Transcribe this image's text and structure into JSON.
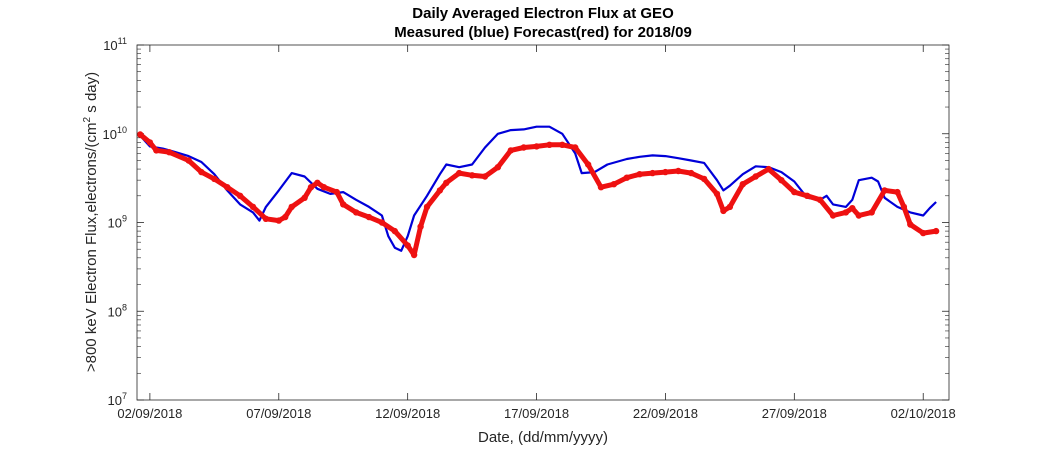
{
  "chart_data": {
    "type": "line",
    "title": "Daily Averaged Electron Flux at GEO",
    "subtitle": "Measured (blue) Forecast(red) for 2018/09",
    "xlabel": "Date, (dd/mm/yyyy)",
    "ylabel": ">800 keV Electron Flux,electrons/(cm",
    "ylabel_sup": "2",
    "ylabel_suffix": " s day)",
    "x_unit": "date",
    "xlim": [
      "2018-09-01T12:00",
      "2018-10-03T00:00"
    ],
    "ylim": [
      10000000,
      100000000000
    ],
    "y_scale": "log",
    "x_ticks": [
      {
        "value": "2018-09-02",
        "label": "02/09/2018"
      },
      {
        "value": "2018-09-07",
        "label": "07/09/2018"
      },
      {
        "value": "2018-09-12",
        "label": "12/09/2018"
      },
      {
        "value": "2018-09-17",
        "label": "17/09/2018"
      },
      {
        "value": "2018-09-22",
        "label": "22/09/2018"
      },
      {
        "value": "2018-09-27",
        "label": "27/09/2018"
      },
      {
        "value": "2018-10-02",
        "label": "02/10/2018"
      }
    ],
    "y_ticks": [
      {
        "value": 10000000,
        "base": "10",
        "exp": "7"
      },
      {
        "value": 100000000,
        "base": "10",
        "exp": "8"
      },
      {
        "value": 1000000000,
        "base": "10",
        "exp": "9"
      },
      {
        "value": 10000000000,
        "base": "10",
        "exp": "10"
      },
      {
        "value": 100000000000,
        "base": "10",
        "exp": "11"
      }
    ],
    "grid": false,
    "series": [
      {
        "color": "#0000d9",
        "style": "line",
        "points": [
          [
            "2018-09-01T15:00",
            9500000000
          ],
          [
            "2018-09-02T00:00",
            7200000000
          ],
          [
            "2018-09-02T12:00",
            6800000000
          ],
          [
            "2018-09-03T00:00",
            6200000000
          ],
          [
            "2018-09-03T12:00",
            5600000000
          ],
          [
            "2018-09-04T00:00",
            4800000000
          ],
          [
            "2018-09-04T12:00",
            3500000000
          ],
          [
            "2018-09-05T00:00",
            2300000000
          ],
          [
            "2018-09-05T12:00",
            1600000000
          ],
          [
            "2018-09-06T00:00",
            1300000000
          ],
          [
            "2018-09-06T06:00",
            1050000000
          ],
          [
            "2018-09-06T12:00",
            1500000000
          ],
          [
            "2018-09-07T00:00",
            2300000000
          ],
          [
            "2018-09-07T12:00",
            3600000000
          ],
          [
            "2018-09-08T00:00",
            3300000000
          ],
          [
            "2018-09-08T12:00",
            2400000000
          ],
          [
            "2018-09-09T00:00",
            2100000000
          ],
          [
            "2018-09-09T12:00",
            2200000000
          ],
          [
            "2018-09-10T00:00",
            1800000000
          ],
          [
            "2018-09-10T12:00",
            1500000000
          ],
          [
            "2018-09-11T00:00",
            1200000000
          ],
          [
            "2018-09-11T06:00",
            700000000
          ],
          [
            "2018-09-11T12:00",
            520000000
          ],
          [
            "2018-09-11T18:00",
            480000000
          ],
          [
            "2018-09-12T00:00",
            700000000
          ],
          [
            "2018-09-12T06:00",
            1200000000
          ],
          [
            "2018-09-12T18:00",
            2000000000
          ],
          [
            "2018-09-13T06:00",
            3500000000
          ],
          [
            "2018-09-13T12:00",
            4500000000
          ],
          [
            "2018-09-14T00:00",
            4200000000
          ],
          [
            "2018-09-14T12:00",
            4500000000
          ],
          [
            "2018-09-15T00:00",
            7000000000
          ],
          [
            "2018-09-15T12:00",
            10000000000
          ],
          [
            "2018-09-16T00:00",
            11000000000
          ],
          [
            "2018-09-16T12:00",
            11200000000
          ],
          [
            "2018-09-17T00:00",
            12000000000
          ],
          [
            "2018-09-17T12:00",
            12000000000
          ],
          [
            "2018-09-18T00:00",
            10000000000
          ],
          [
            "2018-09-18T12:00",
            6000000000
          ],
          [
            "2018-09-18T18:00",
            3600000000
          ],
          [
            "2018-09-19T06:00",
            3700000000
          ],
          [
            "2018-09-19T18:00",
            4500000000
          ],
          [
            "2018-09-20T12:00",
            5200000000
          ],
          [
            "2018-09-21T00:00",
            5500000000
          ],
          [
            "2018-09-21T12:00",
            5700000000
          ],
          [
            "2018-09-22T00:00",
            5600000000
          ],
          [
            "2018-09-22T12:00",
            5300000000
          ],
          [
            "2018-09-23T00:00",
            5000000000
          ],
          [
            "2018-09-23T12:00",
            4700000000
          ],
          [
            "2018-09-24T00:00",
            3000000000
          ],
          [
            "2018-09-24T06:00",
            2300000000
          ],
          [
            "2018-09-24T12:00",
            2600000000
          ],
          [
            "2018-09-25T00:00",
            3500000000
          ],
          [
            "2018-09-25T12:00",
            4300000000
          ],
          [
            "2018-09-26T00:00",
            4200000000
          ],
          [
            "2018-09-26T12:00",
            3700000000
          ],
          [
            "2018-09-27T00:00",
            2900000000
          ],
          [
            "2018-09-27T12:00",
            1900000000
          ],
          [
            "2018-09-28T00:00",
            1800000000
          ],
          [
            "2018-09-28T06:00",
            2000000000
          ],
          [
            "2018-09-28T12:00",
            1600000000
          ],
          [
            "2018-09-29T00:00",
            1500000000
          ],
          [
            "2018-09-29T06:00",
            1800000000
          ],
          [
            "2018-09-29T12:00",
            3000000000
          ],
          [
            "2018-09-30T00:00",
            3200000000
          ],
          [
            "2018-09-30T06:00",
            2900000000
          ],
          [
            "2018-09-30T12:00",
            1900000000
          ],
          [
            "2018-10-01T00:00",
            1500000000
          ],
          [
            "2018-10-01T12:00",
            1300000000
          ],
          [
            "2018-10-02T00:00",
            1200000000
          ],
          [
            "2018-10-02T06:00",
            1450000000
          ],
          [
            "2018-10-02T12:00",
            1700000000
          ]
        ]
      },
      {
        "color": "#ee1111",
        "style": "markers",
        "points": [
          [
            "2018-09-01T15:00",
            9800000000
          ],
          [
            "2018-09-02T00:00",
            8000000000
          ],
          [
            "2018-09-02T06:00",
            6500000000
          ],
          [
            "2018-09-02T18:00",
            6200000000
          ],
          [
            "2018-09-03T12:00",
            5000000000
          ],
          [
            "2018-09-04T00:00",
            3700000000
          ],
          [
            "2018-09-04T12:00",
            3100000000
          ],
          [
            "2018-09-05T00:00",
            2500000000
          ],
          [
            "2018-09-05T12:00",
            2000000000
          ],
          [
            "2018-09-06T00:00",
            1500000000
          ],
          [
            "2018-09-06T12:00",
            1100000000
          ],
          [
            "2018-09-07T00:00",
            1050000000
          ],
          [
            "2018-09-07T06:00",
            1150000000
          ],
          [
            "2018-09-07T12:00",
            1500000000
          ],
          [
            "2018-09-08T00:00",
            1900000000
          ],
          [
            "2018-09-08T06:00",
            2500000000
          ],
          [
            "2018-09-08T12:00",
            2800000000
          ],
          [
            "2018-09-08T18:00",
            2500000000
          ],
          [
            "2018-09-09T06:00",
            2200000000
          ],
          [
            "2018-09-09T12:00",
            1600000000
          ],
          [
            "2018-09-10T00:00",
            1300000000
          ],
          [
            "2018-09-10T12:00",
            1150000000
          ],
          [
            "2018-09-11T00:00",
            1000000000
          ],
          [
            "2018-09-11T12:00",
            800000000
          ],
          [
            "2018-09-12T00:00",
            550000000
          ],
          [
            "2018-09-12T06:00",
            430000000
          ],
          [
            "2018-09-12T12:00",
            900000000
          ],
          [
            "2018-09-12T18:00",
            1500000000
          ],
          [
            "2018-09-13T06:00",
            2300000000
          ],
          [
            "2018-09-13T12:00",
            2800000000
          ],
          [
            "2018-09-14T00:00",
            3600000000
          ],
          [
            "2018-09-14T12:00",
            3400000000
          ],
          [
            "2018-09-15T00:00",
            3300000000
          ],
          [
            "2018-09-15T12:00",
            4200000000
          ],
          [
            "2018-09-16T00:00",
            6500000000
          ],
          [
            "2018-09-16T12:00",
            7000000000
          ],
          [
            "2018-09-17T00:00",
            7200000000
          ],
          [
            "2018-09-17T12:00",
            7500000000
          ],
          [
            "2018-09-18T00:00",
            7500000000
          ],
          [
            "2018-09-18T12:00",
            7000000000
          ],
          [
            "2018-09-19T00:00",
            4500000000
          ],
          [
            "2018-09-19T12:00",
            2500000000
          ],
          [
            "2018-09-20T00:00",
            2700000000
          ],
          [
            "2018-09-20T12:00",
            3200000000
          ],
          [
            "2018-09-21T00:00",
            3500000000
          ],
          [
            "2018-09-21T12:00",
            3600000000
          ],
          [
            "2018-09-22T00:00",
            3700000000
          ],
          [
            "2018-09-22T12:00",
            3800000000
          ],
          [
            "2018-09-23T00:00",
            3600000000
          ],
          [
            "2018-09-23T12:00",
            3100000000
          ],
          [
            "2018-09-24T00:00",
            2100000000
          ],
          [
            "2018-09-24T06:00",
            1350000000
          ],
          [
            "2018-09-24T12:00",
            1500000000
          ],
          [
            "2018-09-25T00:00",
            2700000000
          ],
          [
            "2018-09-25T12:00",
            3300000000
          ],
          [
            "2018-09-26T00:00",
            4000000000
          ],
          [
            "2018-09-26T12:00",
            3000000000
          ],
          [
            "2018-09-27T00:00",
            2200000000
          ],
          [
            "2018-09-27T12:00",
            2000000000
          ],
          [
            "2018-09-28T00:00",
            1800000000
          ],
          [
            "2018-09-28T12:00",
            1200000000
          ],
          [
            "2018-09-29T00:00",
            1300000000
          ],
          [
            "2018-09-29T06:00",
            1450000000
          ],
          [
            "2018-09-29T12:00",
            1200000000
          ],
          [
            "2018-09-30T00:00",
            1300000000
          ],
          [
            "2018-09-30T12:00",
            2300000000
          ],
          [
            "2018-10-01T00:00",
            2200000000
          ],
          [
            "2018-10-01T06:00",
            1500000000
          ],
          [
            "2018-10-01T12:00",
            950000000
          ],
          [
            "2018-10-02T00:00",
            760000000
          ],
          [
            "2018-10-02T12:00",
            800000000
          ]
        ]
      }
    ]
  }
}
